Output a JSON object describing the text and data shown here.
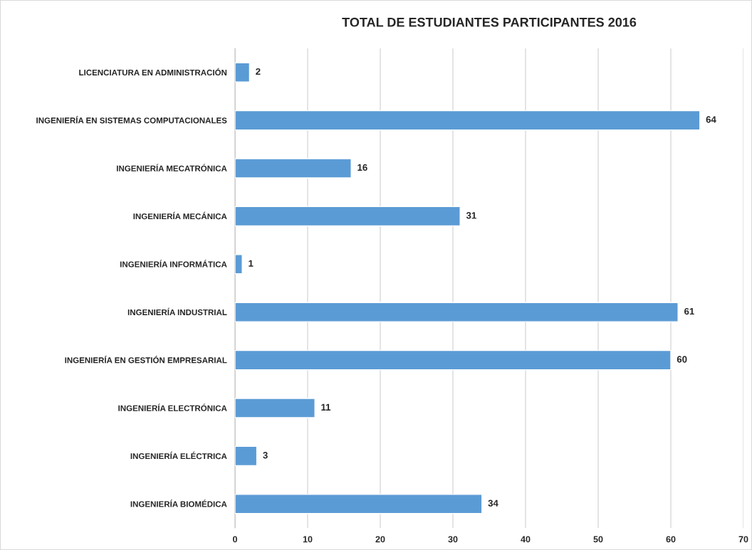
{
  "chart_data": {
    "type": "bar",
    "orientation": "horizontal",
    "title": "TOTAL DE ESTUDIANTES PARTICIPANTES 2016",
    "categories": [
      "LICENCIATURA EN ADMINISTRACIÓN",
      "INGENIERÍA EN SISTEMAS COMPUTACIONALES",
      "INGENIERÍA MECATRÓNICA",
      "INGENIERÍA MECÁNICA",
      "INGENIERÍA INFORMÁTICA",
      "INGENIERÍA INDUSTRIAL",
      "INGENIERÍA EN GESTIÓN EMPRESARIAL",
      "INGENIERÍA ELECTRÓNICA",
      "INGENIERÍA ELÉCTRICA",
      "INGENIERÍA BIOMÉDICA"
    ],
    "values": [
      2,
      64,
      16,
      31,
      1,
      61,
      60,
      11,
      3,
      34
    ],
    "color": "#5b9bd5",
    "xlim": [
      0,
      70
    ],
    "xticks": [
      0,
      10,
      20,
      30,
      40,
      50,
      60,
      70
    ],
    "grid": "x",
    "data_labels": true
  }
}
